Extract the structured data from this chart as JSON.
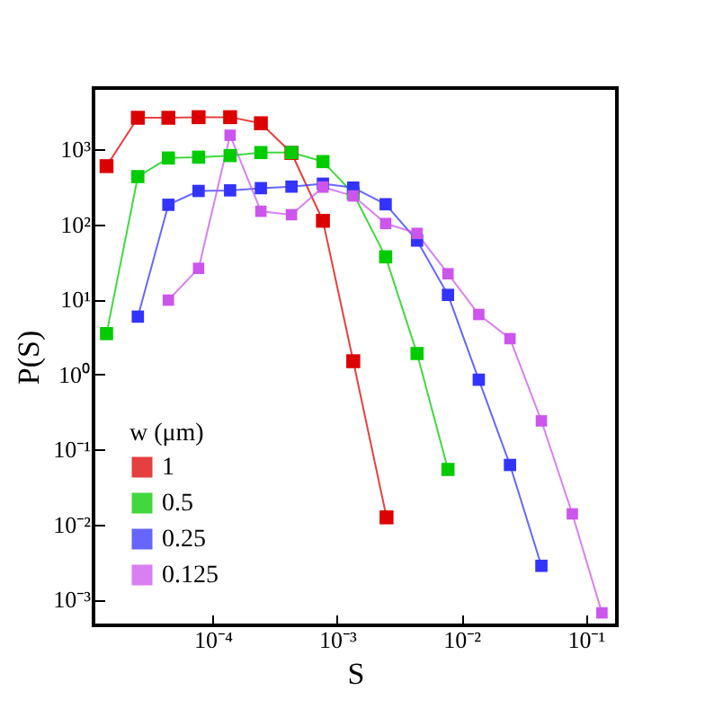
{
  "chart_data": {
    "type": "line",
    "xlabel": "S",
    "ylabel": "P(S)",
    "legend_title": "w (μm)",
    "log": "xy",
    "marker": "square",
    "legend": "bottom left",
    "grid": false,
    "xlim": [
      1.1e-05,
      0.178
    ],
    "ylim": [
      0.00045,
      6600
    ],
    "xticks": [
      {
        "value": 0.0001,
        "label": "10⁻⁴"
      },
      {
        "value": 0.001,
        "label": "10⁻³"
      },
      {
        "value": 0.01,
        "label": "10⁻²"
      },
      {
        "value": 0.1,
        "label": "10⁻¹"
      }
    ],
    "yticks": [
      {
        "value": 0.001,
        "label": "10⁻³"
      },
      {
        "value": 0.01,
        "label": "10⁻²"
      },
      {
        "value": 0.1,
        "label": "10⁻¹"
      },
      {
        "value": 1,
        "label": "10⁰"
      },
      {
        "value": 10,
        "label": "10¹"
      },
      {
        "value": 100,
        "label": "10²"
      },
      {
        "value": 1000,
        "label": "10³"
      }
    ],
    "series": [
      {
        "name": "1",
        "color": "#dd0000",
        "x": [
          1.4e-05,
          2.5e-05,
          4.4e-05,
          7.7e-05,
          0.000138,
          0.000244,
          0.00043,
          0.00077,
          0.00135,
          0.0025
        ],
        "values": [
          600,
          2650,
          2650,
          2700,
          2700,
          2240,
          900,
          112,
          1.5,
          0.0124
        ]
      },
      {
        "name": "0.5",
        "color": "#00cc00",
        "x": [
          1.4e-05,
          2.5e-05,
          4.4e-05,
          7.7e-05,
          0.000138,
          0.000244,
          0.00043,
          0.00077,
          0.00135,
          0.00246,
          0.0044,
          0.0078
        ],
        "values": [
          3.5,
          435,
          770,
          790,
          830,
          910,
          910,
          690,
          260,
          37,
          1.9,
          0.054
        ]
      },
      {
        "name": "0.25",
        "color": "#3333ff",
        "x": [
          2.5e-05,
          4.4e-05,
          7.7e-05,
          0.000138,
          0.000244,
          0.00043,
          0.00077,
          0.00135,
          0.00246,
          0.0044,
          0.0078,
          0.0138,
          0.0246,
          0.044
        ],
        "values": [
          5.9,
          183,
          280,
          285,
          305,
          320,
          350,
          310,
          186,
          61,
          11.5,
          0.85,
          0.062,
          0.0028
        ]
      },
      {
        "name": "0.125",
        "color": "#cc55ee",
        "x": [
          4.4e-05,
          7.7e-05,
          0.000138,
          0.000244,
          0.00043,
          0.00077,
          0.00135,
          0.00246,
          0.0044,
          0.0078,
          0.0138,
          0.0246,
          0.044,
          0.078,
          0.135
        ],
        "values": [
          9.8,
          26,
          1550,
          150,
          135,
          315,
          240,
          103,
          76,
          22,
          6.3,
          3.0,
          0.24,
          0.0138,
          0.00066
        ]
      }
    ]
  }
}
